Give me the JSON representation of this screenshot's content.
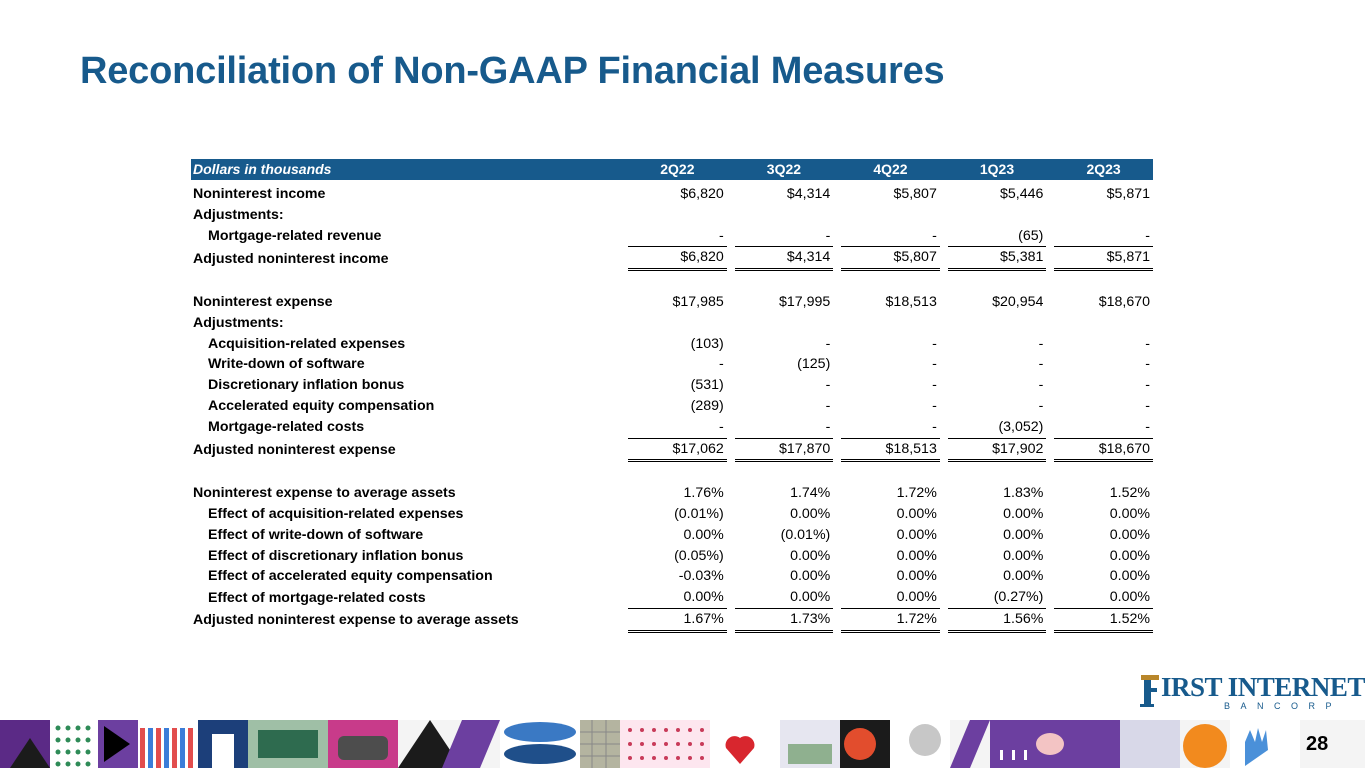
{
  "title": "Reconciliation of Non-GAAP Financial Measures",
  "table": {
    "header": {
      "label": "Dollars in thousands",
      "quarters": [
        "2Q22",
        "3Q22",
        "4Q22",
        "1Q23",
        "2Q23"
      ]
    },
    "rows": [
      {
        "label": "Noninterest income",
        "values": [
          "$6,820",
          "$4,314",
          "$5,807",
          "$5,446",
          "$5,871"
        ]
      },
      {
        "label": "Adjustments:",
        "values": [
          "",
          "",
          "",
          "",
          ""
        ]
      },
      {
        "label": "Mortgage-related revenue",
        "values": [
          "-",
          "-",
          "-",
          "(65)",
          "-"
        ]
      },
      {
        "label": "Adjusted noninterest income",
        "values": [
          "$6,820",
          "$4,314",
          "$5,807",
          "$5,381",
          "$5,871"
        ]
      },
      {
        "label": "Noninterest expense",
        "values": [
          "$17,985",
          "$17,995",
          "$18,513",
          "$20,954",
          "$18,670"
        ]
      },
      {
        "label": "Adjustments:",
        "values": [
          "",
          "",
          "",
          "",
          ""
        ]
      },
      {
        "label": "Acquisition-related expenses",
        "values": [
          "(103)",
          "-",
          "-",
          "-",
          "-"
        ]
      },
      {
        "label": "Write-down of software",
        "values": [
          "-",
          "(125)",
          "-",
          "-",
          "-"
        ]
      },
      {
        "label": "Discretionary inflation bonus",
        "values": [
          "(531)",
          "-",
          "-",
          "-",
          "-"
        ]
      },
      {
        "label": "Accelerated equity compensation",
        "values": [
          "(289)",
          "-",
          "-",
          "-",
          "-"
        ]
      },
      {
        "label": "Mortgage-related costs",
        "values": [
          "-",
          "-",
          "-",
          "(3,052)",
          "-"
        ]
      },
      {
        "label": "Adjusted noninterest expense",
        "values": [
          "$17,062",
          "$17,870",
          "$18,513",
          "$17,902",
          "$18,670"
        ]
      },
      {
        "label": "Noninterest expense to average assets",
        "values": [
          "1.76%",
          "1.74%",
          "1.72%",
          "1.83%",
          "1.52%"
        ]
      },
      {
        "label": "Effect of acquisition-related expenses",
        "values": [
          "(0.01%)",
          "0.00%",
          "0.00%",
          "0.00%",
          "0.00%"
        ]
      },
      {
        "label": "Effect of write-down of software",
        "values": [
          "0.00%",
          "(0.01%)",
          "0.00%",
          "0.00%",
          "0.00%"
        ]
      },
      {
        "label": "Effect of discretionary inflation bonus",
        "values": [
          "(0.05%)",
          "0.00%",
          "0.00%",
          "0.00%",
          "0.00%"
        ]
      },
      {
        "label": "Effect of accelerated equity compensation",
        "values": [
          "-0.03%",
          "0.00%",
          "0.00%",
          "0.00%",
          "0.00%"
        ]
      },
      {
        "label": "Effect of mortgage-related costs",
        "values": [
          "0.00%",
          "0.00%",
          "0.00%",
          "(0.27%)",
          "0.00%"
        ]
      },
      {
        "label": "Adjusted noninterest expense to average assets",
        "values": [
          "1.67%",
          "1.73%",
          "1.72%",
          "1.56%",
          "1.52%"
        ]
      }
    ]
  },
  "logo": {
    "initial": "F",
    "word": "IRST INTERNET",
    "sub": "BANCORP"
  },
  "page_number": "28",
  "colors": {
    "brand_blue": "#175a8c",
    "brand_gold": "#b8862a"
  }
}
